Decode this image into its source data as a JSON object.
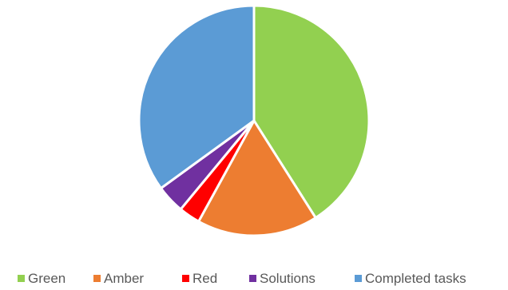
{
  "chart_data": {
    "type": "pie",
    "categories": [
      "Green",
      "Amber",
      "Red",
      "Solutions",
      "Completed tasks"
    ],
    "values": [
      41,
      17,
      3,
      4,
      35
    ],
    "unit": "%",
    "colors": [
      "#92D050",
      "#ED7D31",
      "#FF0000",
      "#7030A0",
      "#5B9BD5"
    ],
    "start_angle_deg": 0,
    "direction": "clockwise",
    "slice_border_color": "#FFFFFF",
    "legend_position": "bottom",
    "title": ""
  }
}
